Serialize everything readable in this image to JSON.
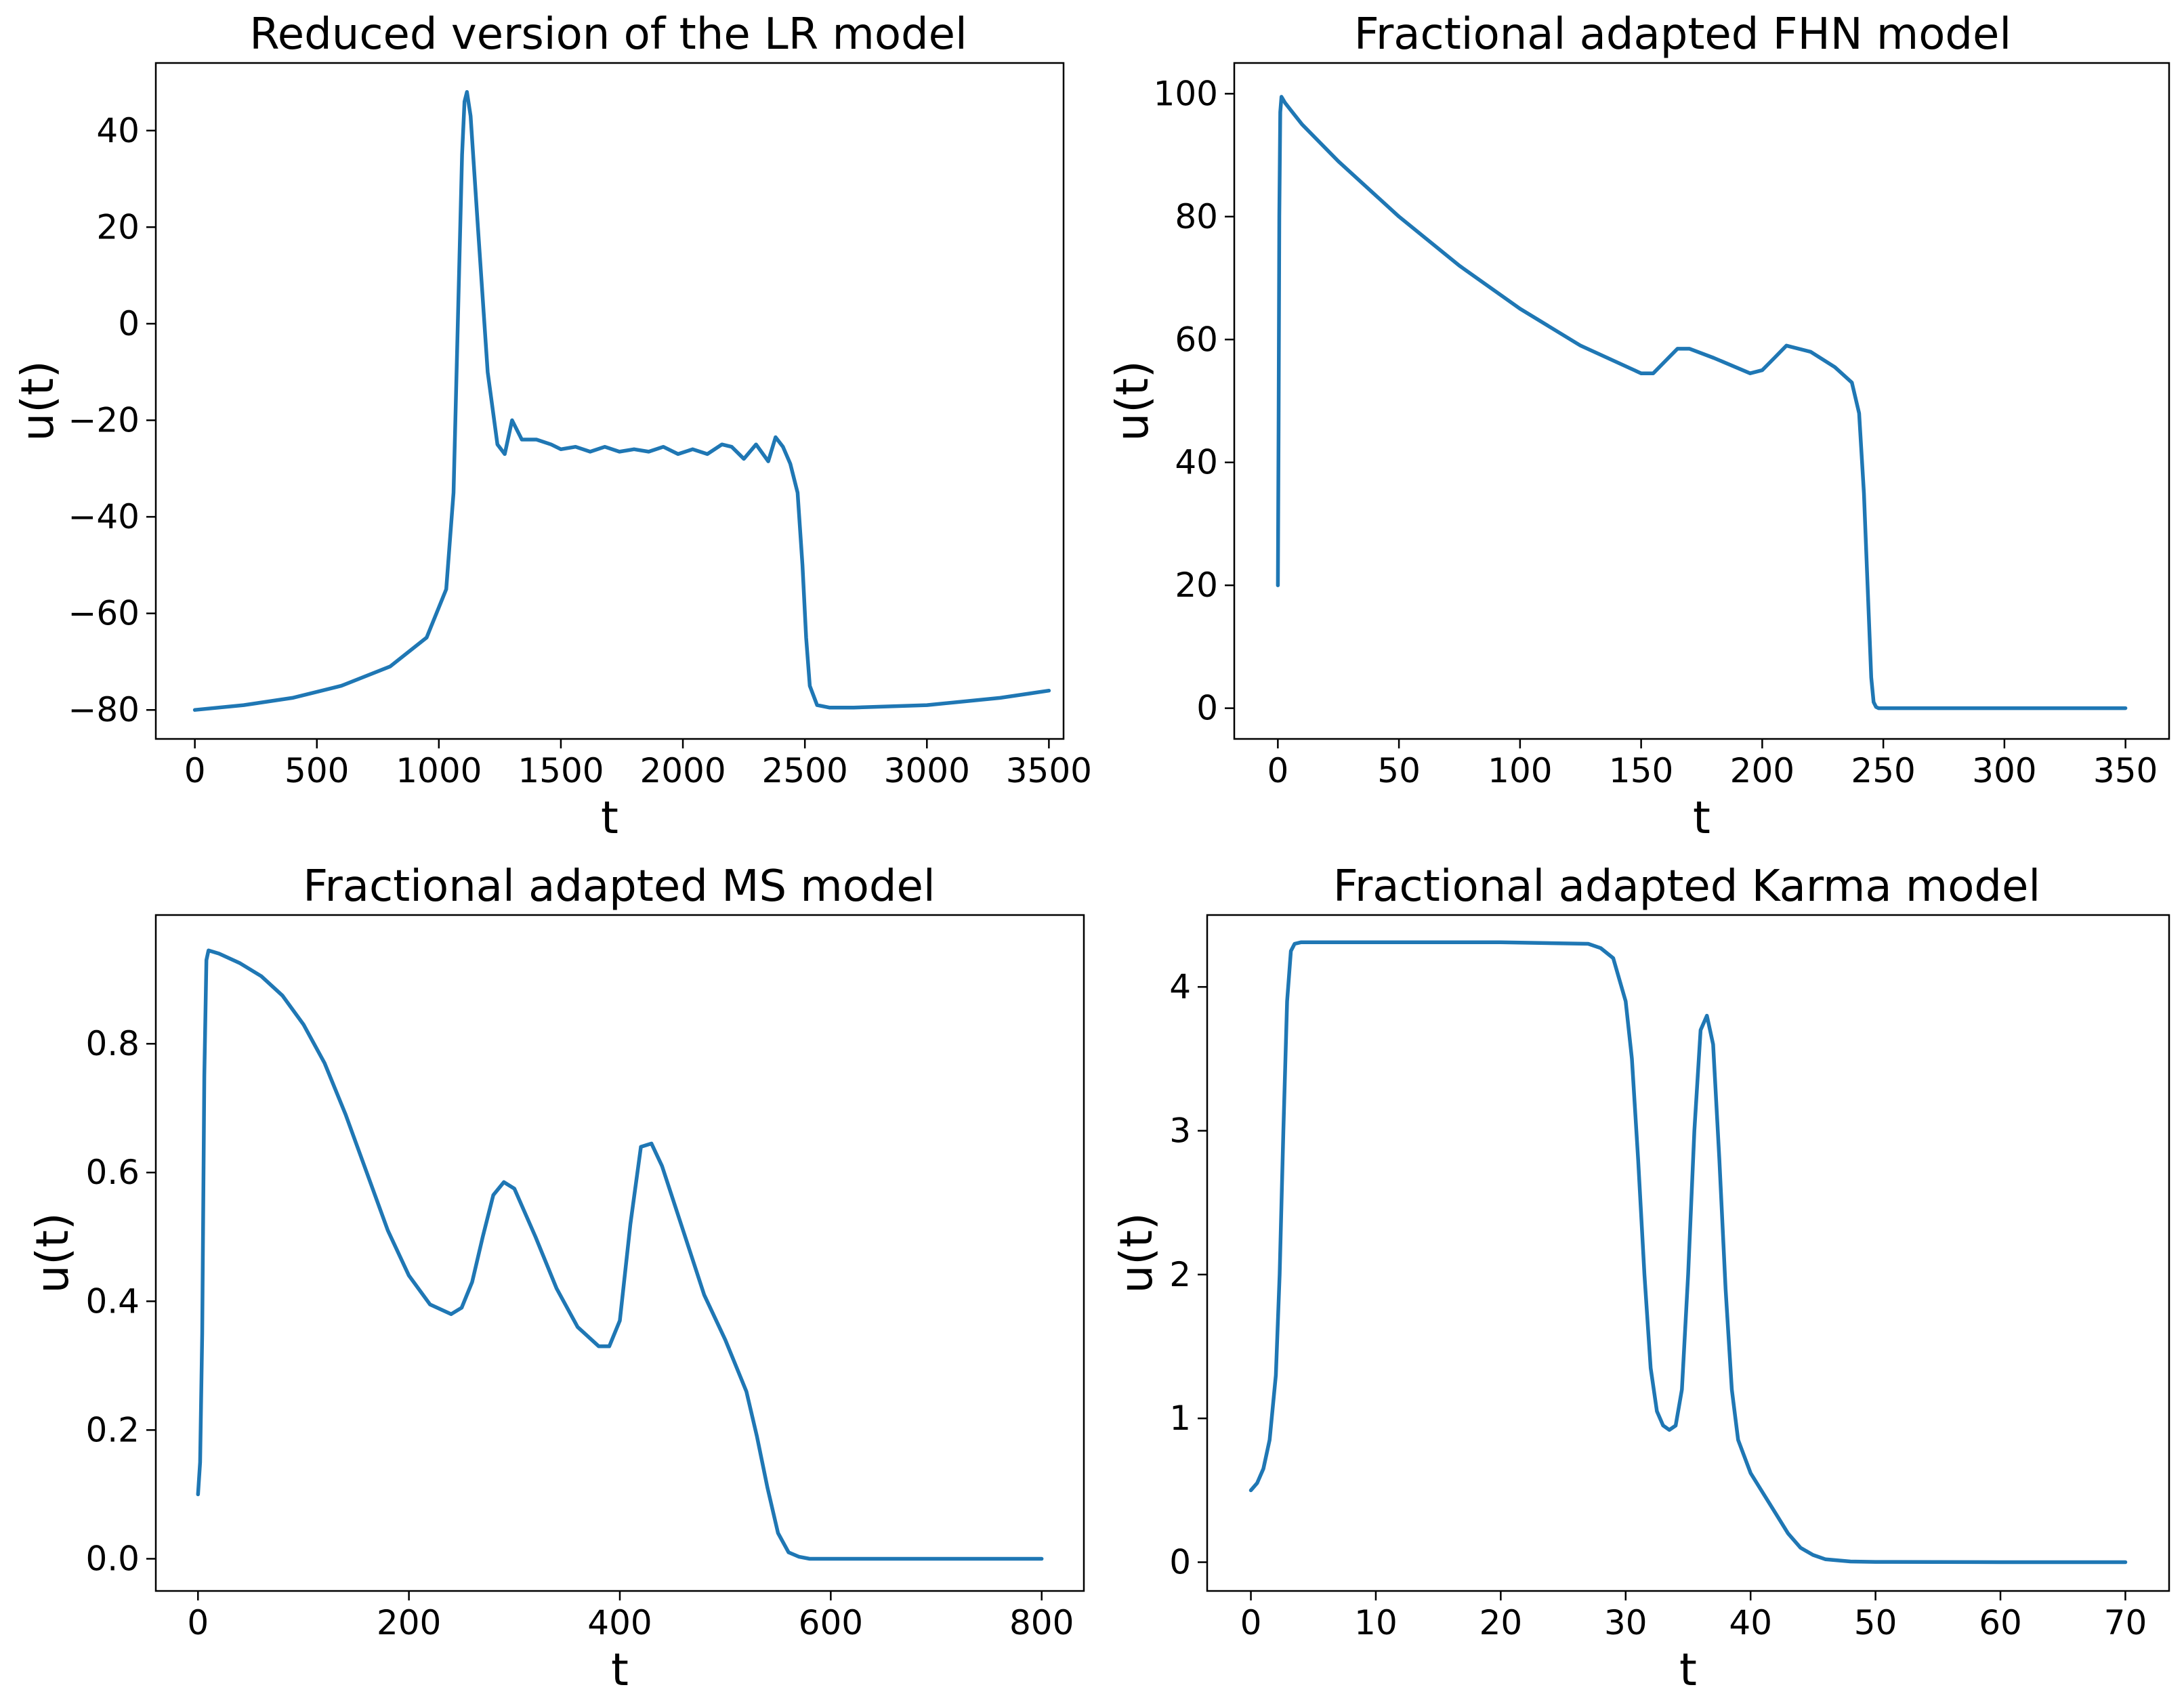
{
  "colors": {
    "series": "#1f77b4"
  },
  "chart_data": [
    {
      "type": "line",
      "title": "Reduced version of the LR model",
      "xlabel": "t",
      "ylabel": "u(t)",
      "xlim": [
        -160,
        3560
      ],
      "ylim": [
        -86,
        54
      ],
      "xticks": [
        0,
        500,
        1000,
        1500,
        2000,
        2500,
        3000,
        3500
      ],
      "xtick_labels": [
        "0",
        "500",
        "1000",
        "1500",
        "2000",
        "2500",
        "3000",
        "3500"
      ],
      "yticks": [
        -80,
        -60,
        -40,
        -20,
        0,
        20,
        40
      ],
      "ytick_labels": [
        "−80",
        "−60",
        "−40",
        "−20",
        "0",
        "20",
        "40"
      ],
      "grid": false,
      "series": [
        {
          "name": "u(t)",
          "x": [
            0,
            200,
            400,
            600,
            800,
            950,
            1030,
            1060,
            1080,
            1095,
            1105,
            1115,
            1130,
            1160,
            1200,
            1240,
            1270,
            1300,
            1340,
            1400,
            1460,
            1500,
            1560,
            1620,
            1680,
            1740,
            1800,
            1860,
            1920,
            1980,
            2040,
            2100,
            2160,
            2200,
            2250,
            2300,
            2350,
            2380,
            2410,
            2440,
            2470,
            2490,
            2505,
            2520,
            2550,
            2600,
            2700,
            3000,
            3300,
            3500
          ],
          "y": [
            -80,
            -79,
            -77.5,
            -75,
            -71,
            -65,
            -55,
            -35,
            5,
            35,
            46,
            48,
            43,
            20,
            -10,
            -25,
            -27,
            -20,
            -24,
            -24,
            -25,
            -26,
            -25.5,
            -26.5,
            -25.5,
            -26.5,
            -26,
            -26.5,
            -25.5,
            -27,
            -26,
            -27,
            -25,
            -25.5,
            -28,
            -25,
            -28.5,
            -23.5,
            -25.5,
            -29,
            -35,
            -50,
            -65,
            -75,
            -79,
            -79.5,
            -79.5,
            -79,
            -77.5,
            -76
          ]
        }
      ]
    },
    {
      "type": "line",
      "title": "Fractional adapted FHN model",
      "xlabel": "t",
      "ylabel": "u(t)",
      "xlim": [
        -18,
        368
      ],
      "ylim": [
        -5,
        105
      ],
      "xticks": [
        0,
        50,
        100,
        150,
        200,
        250,
        300,
        350
      ],
      "xtick_labels": [
        "0",
        "50",
        "100",
        "150",
        "200",
        "250",
        "300",
        "350"
      ],
      "yticks": [
        0,
        20,
        40,
        60,
        80,
        100
      ],
      "ytick_labels": [
        "0",
        "20",
        "40",
        "60",
        "80",
        "100"
      ],
      "grid": false,
      "series": [
        {
          "name": "u(t)",
          "x": [
            0,
            0.3,
            0.6,
            1,
            1.5,
            3,
            10,
            25,
            50,
            75,
            100,
            125,
            150,
            155,
            160,
            165,
            170,
            180,
            195,
            200,
            205,
            210,
            220,
            230,
            237,
            240,
            242,
            244,
            245,
            246,
            247,
            248,
            250,
            300,
            350
          ],
          "y": [
            20,
            45,
            80,
            97,
            99.5,
            98.5,
            95,
            89,
            80,
            72,
            65,
            59,
            54.5,
            54.5,
            56.5,
            58.5,
            58.5,
            57,
            54.5,
            55,
            57,
            59,
            58,
            55.5,
            53,
            48,
            35,
            15,
            5,
            1,
            0.2,
            0,
            0,
            0,
            0
          ]
        }
      ]
    },
    {
      "type": "line",
      "title": "Fractional adapted MS model",
      "xlabel": "t",
      "ylabel": "u(t)",
      "xlim": [
        -40,
        840
      ],
      "ylim": [
        -0.05,
        1.0
      ],
      "xticks": [
        0,
        200,
        400,
        600,
        800
      ],
      "xtick_labels": [
        "0",
        "200",
        "400",
        "600",
        "800"
      ],
      "yticks": [
        0.0,
        0.2,
        0.4,
        0.6,
        0.8
      ],
      "ytick_labels": [
        "0.0",
        "0.2",
        "0.4",
        "0.6",
        "0.8"
      ],
      "grid": false,
      "series": [
        {
          "name": "u(t)",
          "x": [
            0,
            2,
            4,
            6,
            8,
            10,
            20,
            40,
            60,
            80,
            100,
            120,
            140,
            160,
            180,
            200,
            220,
            240,
            250,
            260,
            270,
            280,
            290,
            300,
            320,
            340,
            360,
            380,
            390,
            400,
            410,
            420,
            430,
            440,
            460,
            480,
            500,
            520,
            530,
            540,
            550,
            560,
            570,
            580,
            600,
            700,
            800
          ],
          "y": [
            0.1,
            0.15,
            0.35,
            0.75,
            0.93,
            0.945,
            0.94,
            0.925,
            0.905,
            0.875,
            0.83,
            0.77,
            0.69,
            0.6,
            0.51,
            0.44,
            0.395,
            0.38,
            0.39,
            0.43,
            0.5,
            0.565,
            0.585,
            0.575,
            0.5,
            0.42,
            0.36,
            0.33,
            0.33,
            0.37,
            0.52,
            0.64,
            0.645,
            0.61,
            0.51,
            0.41,
            0.34,
            0.26,
            0.19,
            0.11,
            0.04,
            0.01,
            0.003,
            0,
            0,
            0,
            0
          ]
        }
      ]
    },
    {
      "type": "line",
      "title": "Fractional adapted Karma model",
      "xlabel": "t",
      "ylabel": "u(t)",
      "xlim": [
        -3.5,
        73.5
      ],
      "ylim": [
        -0.2,
        4.5
      ],
      "xticks": [
        0,
        10,
        20,
        30,
        40,
        50,
        60,
        70
      ],
      "xtick_labels": [
        "0",
        "10",
        "20",
        "30",
        "40",
        "50",
        "60",
        "70"
      ],
      "yticks": [
        0,
        1,
        2,
        3,
        4
      ],
      "ytick_labels": [
        "0",
        "1",
        "2",
        "3",
        "4"
      ],
      "grid": false,
      "series": [
        {
          "name": "u(t)",
          "x": [
            0,
            0.5,
            1,
            1.5,
            2,
            2.3,
            2.6,
            2.9,
            3.2,
            3.5,
            4,
            10,
            20,
            27,
            28,
            29,
            30,
            30.5,
            31,
            31.5,
            32,
            32.5,
            33,
            33.5,
            34,
            34.5,
            35,
            35.5,
            36,
            36.5,
            37,
            37.5,
            38,
            38.5,
            39,
            40,
            41,
            42,
            43,
            44,
            45,
            46,
            48,
            50,
            60,
            70
          ],
          "y": [
            0.5,
            0.55,
            0.65,
            0.85,
            1.3,
            2.0,
            3.0,
            3.9,
            4.25,
            4.3,
            4.31,
            4.31,
            4.31,
            4.3,
            4.27,
            4.2,
            3.9,
            3.5,
            2.8,
            2.0,
            1.35,
            1.05,
            0.95,
            0.92,
            0.95,
            1.2,
            2.0,
            3.0,
            3.7,
            3.8,
            3.6,
            2.8,
            1.9,
            1.2,
            0.85,
            0.62,
            0.48,
            0.34,
            0.2,
            0.1,
            0.05,
            0.02,
            0.005,
            0.002,
            0,
            0
          ]
        }
      ]
    }
  ]
}
